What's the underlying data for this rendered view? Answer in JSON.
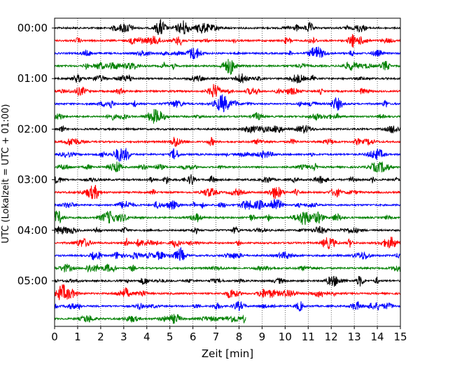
{
  "chart_data": {
    "type": "line",
    "title": "",
    "xlabel": "Zeit  [min]",
    "ylabel": "UTC (Lokalzeit = UTC + 01:00)",
    "xlim": [
      0,
      15
    ],
    "x_ticks": [
      "0",
      "1",
      "2",
      "3",
      "4",
      "5",
      "6",
      "7",
      "8",
      "9",
      "10",
      "11",
      "12",
      "13",
      "14",
      "15"
    ],
    "y_tick_labels": [
      "00:00",
      "01:00",
      "02:00",
      "03:00",
      "04:00",
      "05:00"
    ],
    "grid": "vertical dotted lines at each minute",
    "trace_interval_minutes": 15,
    "color_cycle": [
      "#000000",
      "#ff0000",
      "#0000ff",
      "#008000"
    ],
    "traces": [
      {
        "start": "00:00",
        "color": "#000000",
        "length_min": 15
      },
      {
        "start": "00:15",
        "color": "#ff0000",
        "length_min": 15
      },
      {
        "start": "00:30",
        "color": "#0000ff",
        "length_min": 15
      },
      {
        "start": "00:45",
        "color": "#008000",
        "length_min": 15
      },
      {
        "start": "01:00",
        "color": "#000000",
        "length_min": 15
      },
      {
        "start": "01:15",
        "color": "#ff0000",
        "length_min": 15
      },
      {
        "start": "01:30",
        "color": "#0000ff",
        "length_min": 15
      },
      {
        "start": "01:45",
        "color": "#008000",
        "length_min": 15
      },
      {
        "start": "02:00",
        "color": "#000000",
        "length_min": 15
      },
      {
        "start": "02:15",
        "color": "#ff0000",
        "length_min": 15
      },
      {
        "start": "02:30",
        "color": "#0000ff",
        "length_min": 15
      },
      {
        "start": "02:45",
        "color": "#008000",
        "length_min": 15
      },
      {
        "start": "03:00",
        "color": "#000000",
        "length_min": 15
      },
      {
        "start": "03:15",
        "color": "#ff0000",
        "length_min": 15
      },
      {
        "start": "03:30",
        "color": "#0000ff",
        "length_min": 15
      },
      {
        "start": "03:45",
        "color": "#008000",
        "length_min": 15
      },
      {
        "start": "04:00",
        "color": "#000000",
        "length_min": 15
      },
      {
        "start": "04:15",
        "color": "#ff0000",
        "length_min": 15
      },
      {
        "start": "04:30",
        "color": "#0000ff",
        "length_min": 15
      },
      {
        "start": "04:45",
        "color": "#008000",
        "length_min": 15
      },
      {
        "start": "05:00",
        "color": "#000000",
        "length_min": 15
      },
      {
        "start": "05:15",
        "color": "#ff0000",
        "length_min": 15
      },
      {
        "start": "05:30",
        "color": "#0000ff",
        "length_min": 15
      },
      {
        "start": "05:45",
        "color": "#008000",
        "length_min": 8.3
      }
    ]
  }
}
